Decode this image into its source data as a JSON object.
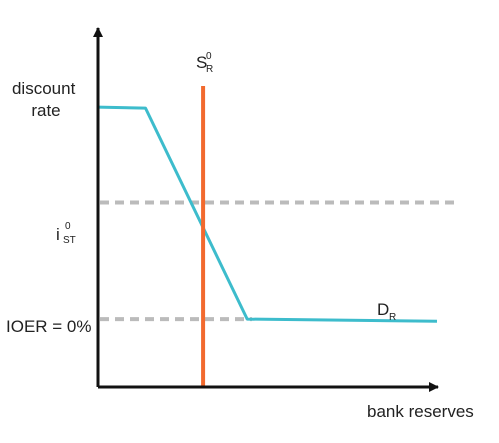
{
  "chart_data": {
    "type": "line",
    "xlabel": "bank reserves",
    "ylabel": "",
    "y_levels": {
      "discount_rate": {
        "lines": [
          "discount",
          "rate"
        ],
        "value": 1.0
      },
      "short_term_rate": {
        "base": "i",
        "sup": "0",
        "sub": "ST",
        "value": 0.55
      },
      "ioer": {
        "label": "IOER = 0%",
        "value": 0.0
      }
    },
    "series": [
      {
        "name": "D",
        "name_sub": "R",
        "color": "#3dbccc",
        "points": [
          [
            0.0,
            1.0
          ],
          [
            0.14,
            0.995
          ],
          [
            0.44,
            0.0
          ],
          [
            1.0,
            -0.01
          ]
        ]
      },
      {
        "name": "S",
        "name_sup": "0",
        "name_sub": "R",
        "color": "#f26a2e",
        "x": 0.31
      }
    ],
    "reference_lines": [
      {
        "y_key": "short_term_rate",
        "color": "#bbbbbb",
        "style": "dashed"
      },
      {
        "y_key": "ioer",
        "color": "#bbbbbb",
        "style": "dashed"
      }
    ],
    "xlim": [
      0,
      1.18
    ],
    "ylim": [
      -0.32,
      1.42
    ],
    "axis_color": "#111111",
    "grid": false
  }
}
